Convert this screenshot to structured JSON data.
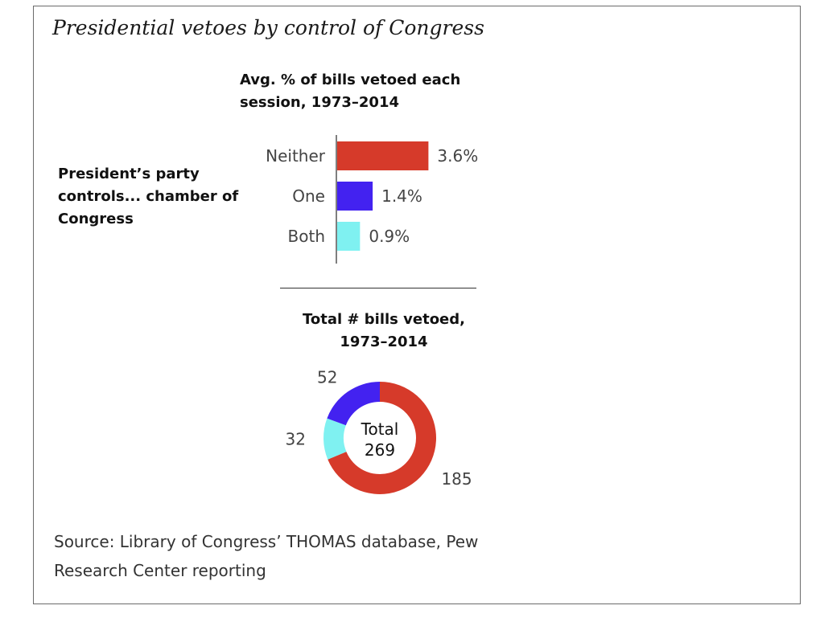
{
  "title": "Presidential vetoes by control of Congress",
  "side_label": "President’s party controls... chamber of Congress",
  "source": "Source: Library of Congress’ THOMAS database, Pew Research Center reporting",
  "chart_data": [
    {
      "type": "bar",
      "orientation": "horizontal",
      "title": "Avg. % of bills vetoed each session, 1973–2014",
      "categories": [
        "Neither",
        "One",
        "Both"
      ],
      "values": [
        3.6,
        1.4,
        0.9
      ],
      "value_labels": [
        "3.6%",
        "1.4%",
        "0.9%"
      ],
      "colors": [
        "#d63a2a",
        "#4322f0",
        "#7ff1f1"
      ],
      "grid": false
    },
    {
      "type": "pie",
      "style": "donut",
      "title": "Total # bills vetoed, 1973–2014",
      "center_label": [
        "Total",
        "269"
      ],
      "slices": [
        {
          "value": 185,
          "label": "185",
          "color": "#d63a2a"
        },
        {
          "value": 32,
          "label": "32",
          "color": "#7ff1f1"
        },
        {
          "value": 52,
          "label": "52",
          "color": "#4322f0"
        }
      ]
    }
  ]
}
